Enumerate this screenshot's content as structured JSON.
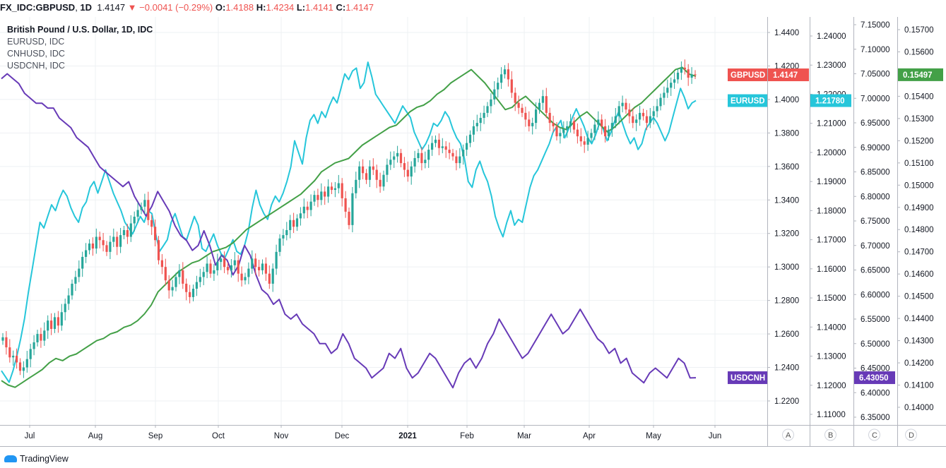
{
  "header": {
    "symbol": "FX_IDC:GBPUSD",
    "interval": "1D",
    "last": "1.4147",
    "change": "−0.0041 (−0.29%)",
    "open_label": "O:",
    "open": "1.4188",
    "high_label": "H:",
    "high": "1.4234",
    "low_label": "L:",
    "low": "1.4141",
    "close_label": "C:",
    "close": "1.4147"
  },
  "legend": {
    "main": "British Pound / U.S. Dollar, 1D, IDC",
    "s1": "EURUSD, IDC",
    "s2": "CNHUSD, IDC",
    "s3": "USDCNH, IDC"
  },
  "colors": {
    "up": "#26a69a",
    "down": "#ef5350",
    "eurusd": "#26c6da",
    "cnhusd": "#43a047",
    "usdcnh": "#673ab7",
    "grid": "#eef0f3"
  },
  "brand": "TradingView",
  "chart_data": {
    "type": "line",
    "x_ticks": [
      "Jul",
      "Aug",
      "Sep",
      "Oct",
      "Nov",
      "Dec",
      "2021",
      "Feb",
      "Mar",
      "Apr",
      "May",
      "Jun"
    ],
    "axes": [
      {
        "id": "A",
        "ticks": [
          "1.4400",
          "1.4200",
          "1.4000",
          "1.3800",
          "1.3600",
          "1.3400",
          "1.3200",
          "1.3000",
          "1.2800",
          "1.2600",
          "1.2400",
          "1.2200"
        ],
        "range": [
          1.21,
          1.445
        ]
      },
      {
        "id": "B",
        "ticks": [
          "1.24000",
          "1.23000",
          "1.22000",
          "1.21000",
          "1.20000",
          "1.19000",
          "1.18000",
          "1.17000",
          "1.16000",
          "1.15000",
          "1.14000",
          "1.13000",
          "1.12000",
          "1.11000"
        ],
        "range": [
          1.104,
          1.2425
        ]
      },
      {
        "id": "C",
        "ticks": [
          "7.15000",
          "7.10000",
          "7.05000",
          "7.00000",
          "6.95000",
          "6.90000",
          "6.85000",
          "6.80000",
          "6.75000",
          "6.70000",
          "6.65000",
          "6.60000",
          "6.55000",
          "6.50000",
          "6.45000",
          "6.40000",
          "6.35000"
        ],
        "range": [
          6.33,
          7.16
        ]
      },
      {
        "id": "D",
        "ticks": [
          "0.15700",
          "0.15600",
          "0.15500",
          "0.15400",
          "0.15300",
          "0.15200",
          "0.15100",
          "0.15000",
          "0.14900",
          "0.14800",
          "0.14700",
          "0.14600",
          "0.14500",
          "0.14400",
          "0.14300",
          "0.14200",
          "0.14100",
          "0.14000"
        ],
        "range": [
          0.13935,
          0.1575
        ]
      }
    ],
    "badges": [
      {
        "label": "GBPUSD",
        "value": "1.4147",
        "color": "#ef5350"
      },
      {
        "label": "EURUSD",
        "value": "1.21780",
        "color": "#26c6da"
      },
      {
        "label": "",
        "value": "0.15497",
        "color": "#43a047"
      },
      {
        "label": "USDCNH",
        "value": "6.43050",
        "color": "#673ab7"
      }
    ],
    "gbpusd_close": [
      1.258,
      1.252,
      1.246,
      1.247,
      1.243,
      1.238,
      1.24,
      1.245,
      1.251,
      1.255,
      1.26,
      1.256,
      1.262,
      1.268,
      1.263,
      1.27,
      1.265,
      1.273,
      1.278,
      1.283,
      1.29,
      1.294,
      1.299,
      1.306,
      1.31,
      1.314,
      1.311,
      1.318,
      1.316,
      1.313,
      1.309,
      1.315,
      1.318,
      1.312,
      1.319,
      1.322,
      1.318,
      1.326,
      1.33,
      1.334,
      1.336,
      1.34,
      1.328,
      1.324,
      1.316,
      1.304,
      1.3,
      1.292,
      1.286,
      1.288,
      1.294,
      1.298,
      1.29,
      1.285,
      1.282,
      1.287,
      1.291,
      1.294,
      1.297,
      1.302,
      1.296,
      1.298,
      1.303,
      1.305,
      1.3,
      1.298,
      1.301,
      1.304,
      1.296,
      1.292,
      1.294,
      1.299,
      1.305,
      1.3,
      1.298,
      1.302,
      1.296,
      1.29,
      1.299,
      1.309,
      1.317,
      1.319,
      1.322,
      1.328,
      1.324,
      1.329,
      1.332,
      1.336,
      1.334,
      1.339,
      1.343,
      1.34,
      1.345,
      1.342,
      1.348,
      1.346,
      1.347,
      1.35,
      1.341,
      1.333,
      1.325,
      1.344,
      1.352,
      1.36,
      1.356,
      1.352,
      1.36,
      1.358,
      1.352,
      1.348,
      1.355,
      1.361,
      1.364,
      1.366,
      1.368,
      1.362,
      1.358,
      1.354,
      1.36,
      1.365,
      1.368,
      1.362,
      1.364,
      1.37,
      1.374,
      1.376,
      1.371,
      1.372,
      1.37,
      1.368,
      1.366,
      1.362,
      1.366,
      1.37,
      1.374,
      1.379,
      1.384,
      1.386,
      1.389,
      1.392,
      1.396,
      1.4,
      1.406,
      1.41,
      1.415,
      1.418,
      1.412,
      1.404,
      1.398,
      1.395,
      1.392,
      1.388,
      1.384,
      1.386,
      1.394,
      1.398,
      1.402,
      1.392,
      1.386,
      1.384,
      1.378,
      1.38,
      1.382,
      1.384,
      1.387,
      1.382,
      1.378,
      1.375,
      1.373,
      1.377,
      1.38,
      1.385,
      1.388,
      1.384,
      1.378,
      1.382,
      1.386,
      1.39,
      1.396,
      1.398,
      1.394,
      1.39,
      1.386,
      1.388,
      1.392,
      1.39,
      1.386,
      1.39,
      1.393,
      1.396,
      1.401,
      1.404,
      1.407,
      1.41,
      1.412,
      1.416,
      1.419,
      1.418,
      1.413,
      1.415,
      1.4147
    ],
    "eurusd": [
      1.125,
      1.123,
      1.121,
      1.125,
      1.13,
      1.136,
      1.143,
      1.152,
      1.16,
      1.168,
      1.176,
      1.174,
      1.178,
      1.182,
      1.18,
      1.184,
      1.187,
      1.185,
      1.181,
      1.178,
      1.176,
      1.181,
      1.183,
      1.188,
      1.19,
      1.186,
      1.19,
      1.194,
      1.19,
      1.186,
      1.183,
      1.18,
      1.176,
      1.174,
      1.172,
      1.175,
      1.178,
      1.176,
      1.18,
      1.179,
      1.172,
      1.166,
      1.168,
      1.17,
      1.176,
      1.179,
      1.175,
      1.171,
      1.17,
      1.174,
      1.178,
      1.175,
      1.167,
      1.166,
      1.169,
      1.172,
      1.168,
      1.165,
      1.164,
      1.167,
      1.17,
      1.166,
      1.165,
      1.168,
      1.173,
      1.181,
      1.187,
      1.182,
      1.179,
      1.177,
      1.182,
      1.185,
      1.183,
      1.186,
      1.19,
      1.195,
      1.204,
      1.2,
      1.196,
      1.205,
      1.211,
      1.213,
      1.21,
      1.214,
      1.212,
      1.216,
      1.219,
      1.217,
      1.222,
      1.227,
      1.225,
      1.228,
      1.229,
      1.222,
      1.224,
      1.231,
      1.226,
      1.22,
      1.218,
      1.216,
      1.214,
      1.212,
      1.21,
      1.213,
      1.216,
      1.214,
      1.212,
      1.207,
      1.204,
      1.201,
      1.203,
      1.206,
      1.21,
      1.209,
      1.211,
      1.214,
      1.212,
      1.208,
      1.205,
      1.203,
      1.198,
      1.19,
      1.188,
      1.194,
      1.197,
      1.193,
      1.19,
      1.185,
      1.178,
      1.174,
      1.171,
      1.176,
      1.18,
      1.175,
      1.177,
      1.176,
      1.182,
      1.188,
      1.192,
      1.194,
      1.197,
      1.2,
      1.203,
      1.207,
      1.209,
      1.211,
      1.205,
      1.208,
      1.212,
      1.215,
      1.212,
      1.209,
      1.205,
      1.203,
      1.206,
      1.21,
      1.208,
      1.204,
      1.207,
      1.211,
      1.214,
      1.21,
      1.206,
      1.203,
      1.205,
      1.201,
      1.203,
      1.208,
      1.21,
      1.212,
      1.21,
      1.207,
      1.204,
      1.207,
      1.212,
      1.217,
      1.222,
      1.219,
      1.215,
      1.217,
      1.2178
    ],
    "cnhusd": [
      0.1412,
      0.141,
      0.1409,
      0.1411,
      0.1413,
      0.1415,
      0.1417,
      0.142,
      0.1422,
      0.1421,
      0.1423,
      0.1424,
      0.1426,
      0.1428,
      0.143,
      0.1431,
      0.1433,
      0.1434,
      0.1436,
      0.1437,
      0.1439,
      0.1442,
      0.1446,
      0.1452,
      0.1455,
      0.1458,
      0.1461,
      0.1463,
      0.1465,
      0.1466,
      0.1468,
      0.147,
      0.1471,
      0.1472,
      0.1474,
      0.1477,
      0.148,
      0.1482,
      0.1484,
      0.1486,
      0.1488,
      0.149,
      0.1492,
      0.1494,
      0.1496,
      0.1499,
      0.1502,
      0.1506,
      0.1508,
      0.151,
      0.1511,
      0.1512,
      0.1515,
      0.1518,
      0.152,
      0.1522,
      0.1524,
      0.1526,
      0.1527,
      0.153,
      0.1533,
      0.1535,
      0.1536,
      0.1538,
      0.1541,
      0.1543,
      0.1546,
      0.1548,
      0.155,
      0.1552,
      0.1549,
      0.1546,
      0.1542,
      0.1538,
      0.1534,
      0.1535,
      0.1538,
      0.154,
      0.1537,
      0.1534,
      0.1531,
      0.1528,
      0.1526,
      0.1525,
      0.1528,
      0.1531,
      0.1533,
      0.153,
      0.1527,
      0.1524,
      0.1526,
      0.1529,
      0.1532,
      0.1535,
      0.1537,
      0.154,
      0.1543,
      0.1546,
      0.1549,
      0.1552,
      0.1553,
      0.155,
      0.1549
    ],
    "usdcnh": [
      7.04,
      7.05,
      7.04,
      7.03,
      7.01,
      7.0,
      6.99,
      6.99,
      6.98,
      6.98,
      6.96,
      6.95,
      6.94,
      6.92,
      6.91,
      6.9,
      6.88,
      6.86,
      6.85,
      6.84,
      6.83,
      6.82,
      6.83,
      6.8,
      6.78,
      6.76,
      6.78,
      6.81,
      6.79,
      6.77,
      6.74,
      6.72,
      6.71,
      6.69,
      6.7,
      6.73,
      6.7,
      6.66,
      6.68,
      6.67,
      6.64,
      6.66,
      6.7,
      6.68,
      6.64,
      6.61,
      6.6,
      6.58,
      6.59,
      6.56,
      6.55,
      6.56,
      6.54,
      6.53,
      6.52,
      6.5,
      6.5,
      6.48,
      6.49,
      6.52,
      6.5,
      6.47,
      6.46,
      6.45,
      6.43,
      6.44,
      6.45,
      6.48,
      6.47,
      6.49,
      6.45,
      6.43,
      6.44,
      6.46,
      6.48,
      6.47,
      6.45,
      6.43,
      6.41,
      6.44,
      6.46,
      6.47,
      6.45,
      6.47,
      6.5,
      6.52,
      6.55,
      6.53,
      6.51,
      6.49,
      6.47,
      6.48,
      6.5,
      6.52,
      6.54,
      6.56,
      6.54,
      6.52,
      6.53,
      6.55,
      6.57,
      6.55,
      6.53,
      6.51,
      6.5,
      6.48,
      6.49,
      6.46,
      6.47,
      6.44,
      6.43,
      6.42,
      6.44,
      6.45,
      6.44,
      6.43,
      6.45,
      6.47,
      6.46,
      6.43,
      6.4305
    ]
  }
}
